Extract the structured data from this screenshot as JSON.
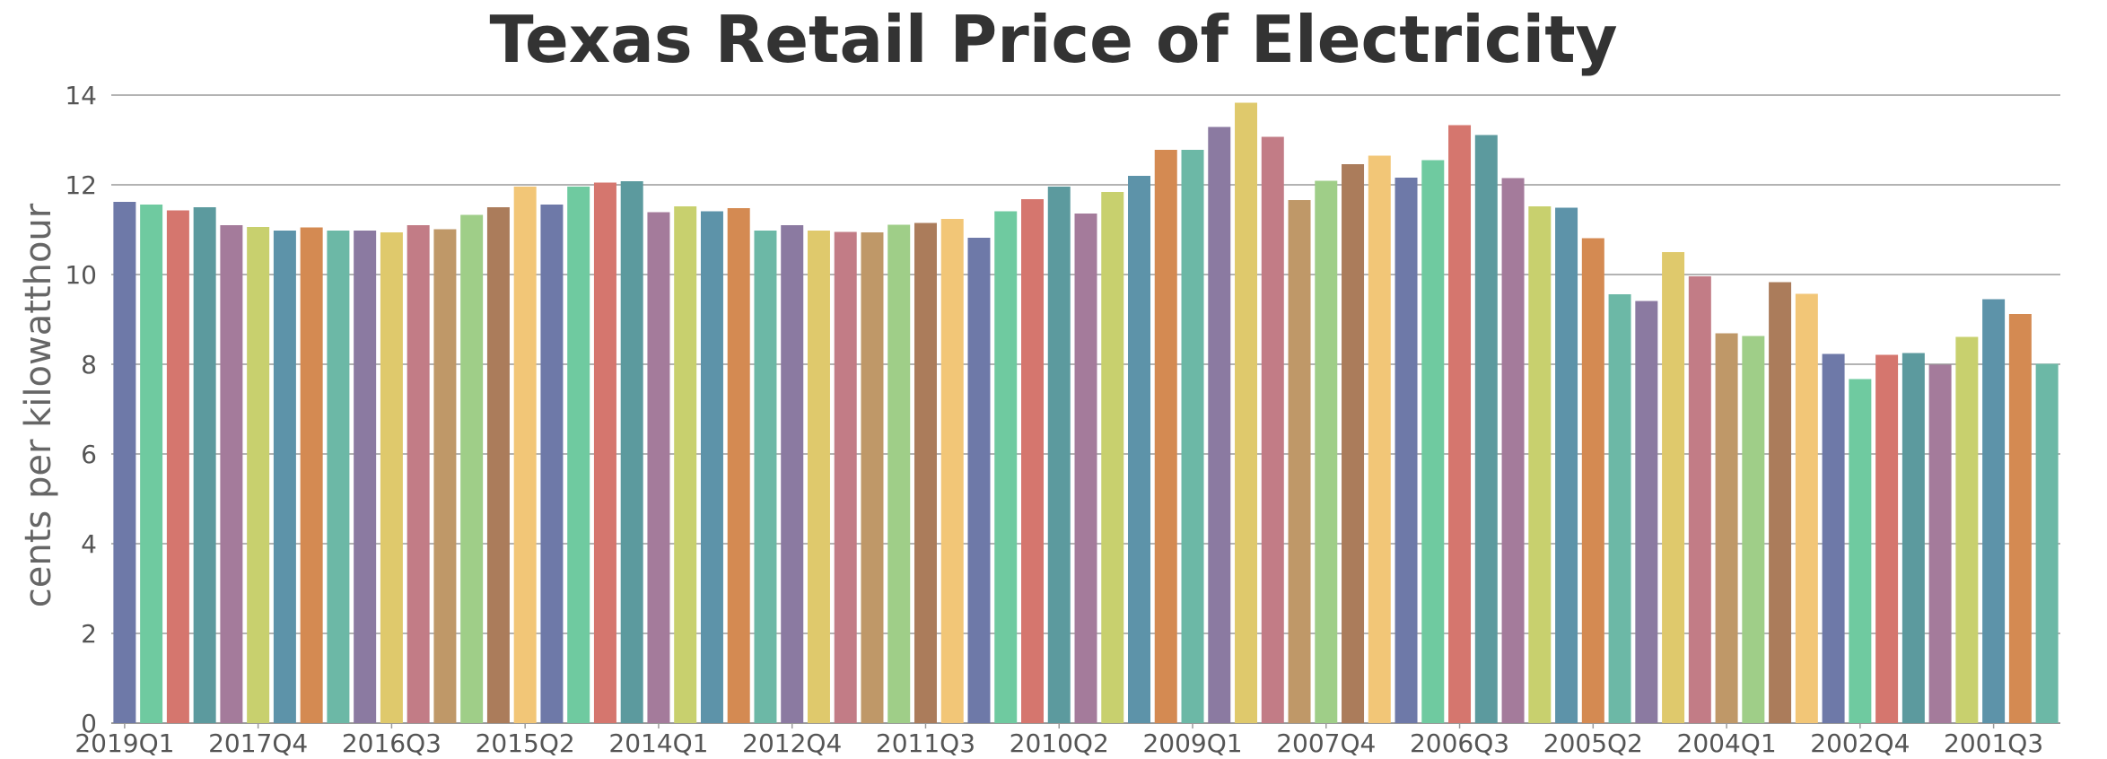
{
  "chart_data": {
    "type": "bar",
    "title": "Texas Retail Price of Electricity",
    "xlabel": "",
    "ylabel": "cents per kilowatthour",
    "ylim": [
      0,
      14
    ],
    "yticks": [
      0,
      2,
      4,
      6,
      8,
      10,
      12,
      14
    ],
    "grid": true,
    "categories": [
      "2019Q1",
      "2018Q4",
      "2018Q3",
      "2018Q2",
      "2018Q1",
      "2017Q4",
      "2017Q3",
      "2017Q2",
      "2017Q1",
      "2016Q4",
      "2016Q3",
      "2016Q2",
      "2016Q1",
      "2015Q4",
      "2015Q3",
      "2015Q2",
      "2015Q1",
      "2014Q4",
      "2014Q3",
      "2014Q2",
      "2014Q1",
      "2013Q4",
      "2013Q3",
      "2013Q2",
      "2013Q1",
      "2012Q4",
      "2012Q3",
      "2012Q2",
      "2012Q1",
      "2011Q4",
      "2011Q3",
      "2011Q2",
      "2011Q1",
      "2010Q4",
      "2010Q3",
      "2010Q2",
      "2010Q1",
      "2009Q4",
      "2009Q3",
      "2009Q2",
      "2009Q1",
      "2008Q4",
      "2008Q3",
      "2008Q2",
      "2008Q1",
      "2007Q4",
      "2007Q3",
      "2007Q2",
      "2007Q1",
      "2006Q4",
      "2006Q3",
      "2006Q2",
      "2006Q1",
      "2005Q4",
      "2005Q3",
      "2005Q2",
      "2005Q1",
      "2004Q4",
      "2004Q3",
      "2004Q2",
      "2004Q1",
      "2003Q4",
      "2003Q3",
      "2003Q2",
      "2003Q1",
      "2002Q4",
      "2002Q3",
      "2002Q2",
      "2002Q1",
      "2001Q4",
      "2001Q3",
      "2001Q2",
      "2001Q1"
    ],
    "visible_xtick_labels": [
      "2019Q1",
      "2017Q4",
      "2016Q3",
      "2015Q2",
      "2014Q1",
      "2012Q4",
      "2011Q3",
      "2010Q2",
      "2009Q1",
      "2007Q4",
      "2006Q3",
      "2005Q2",
      "2004Q1",
      "2002Q4",
      "2001Q3"
    ],
    "values": [
      11.62,
      11.56,
      11.43,
      11.5,
      11.1,
      11.06,
      10.98,
      11.05,
      10.98,
      10.98,
      10.94,
      11.1,
      11.01,
      11.33,
      11.5,
      11.96,
      11.56,
      11.96,
      12.05,
      12.08,
      11.39,
      11.52,
      11.41,
      11.48,
      10.98,
      11.1,
      10.98,
      10.95,
      10.94,
      11.11,
      11.15,
      11.24,
      10.82,
      11.41,
      11.68,
      11.96,
      11.36,
      11.84,
      12.2,
      12.78,
      12.78,
      13.29,
      13.83,
      13.07,
      11.66,
      12.09,
      12.46,
      12.65,
      12.16,
      12.55,
      13.33,
      13.11,
      12.15,
      11.52,
      11.49,
      10.81,
      9.56,
      9.41,
      10.5,
      9.96,
      8.69,
      8.63,
      9.83,
      9.57,
      8.23,
      7.67,
      8.21,
      8.25,
      7.99,
      8.61,
      9.45,
      9.12,
      8.01
    ],
    "colors": [
      "#6e79a8",
      "#6fcaa0",
      "#d5766e",
      "#5c9a9e",
      "#a47b9b",
      "#c8d06e",
      "#5d93a9",
      "#d48a52",
      "#6cb8a6",
      "#8b7aa1",
      "#dfc96c",
      "#c27c86",
      "#bf9868",
      "#9fce88",
      "#ab7c5b",
      "#f2c677"
    ]
  }
}
